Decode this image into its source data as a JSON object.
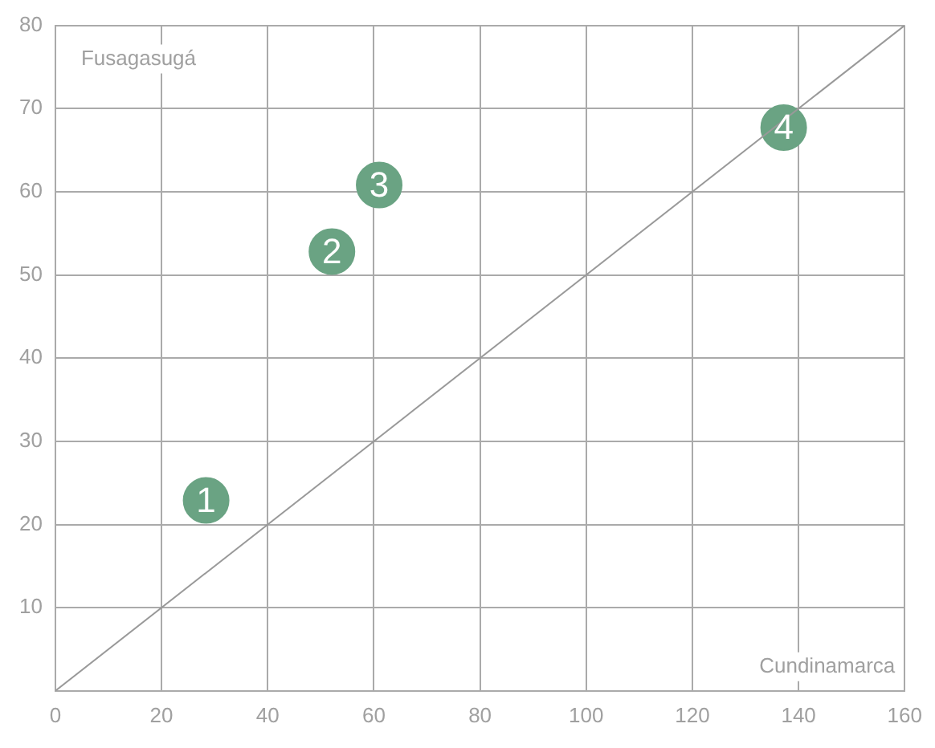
{
  "chart_data": {
    "type": "scatter",
    "xlabel": "Cundinamarca",
    "ylabel": "Fusagasugá",
    "xlim": [
      0,
      160
    ],
    "xticks": [
      0,
      20,
      40,
      60,
      80,
      100,
      120,
      140,
      160
    ],
    "ylim": [
      0,
      80
    ],
    "yticks": [
      10,
      20,
      30,
      40,
      50,
      60,
      70,
      80
    ],
    "annotations": [
      {
        "text": "1",
        "x": 28.4,
        "y": 22.9
      },
      {
        "text": "2",
        "x": 52.1,
        "y": 52.8
      },
      {
        "text": "3",
        "x": 61.0,
        "y": 60.8
      },
      {
        "text": "4",
        "x": 137.2,
        "y": 67.7
      }
    ],
    "grid": true,
    "legend": false,
    "marker": "circle",
    "series": [
      {
        "type": "line",
        "color": "#999999",
        "x": [
          0,
          160
        ],
        "values": [
          0,
          80
        ],
        "marker": "none"
      },
      {
        "color": "#6aa383",
        "x": [
          28.4,
          52.1,
          61.0,
          137.2
        ],
        "values": [
          22.9,
          52.8,
          60.8,
          67.7
        ]
      }
    ]
  }
}
